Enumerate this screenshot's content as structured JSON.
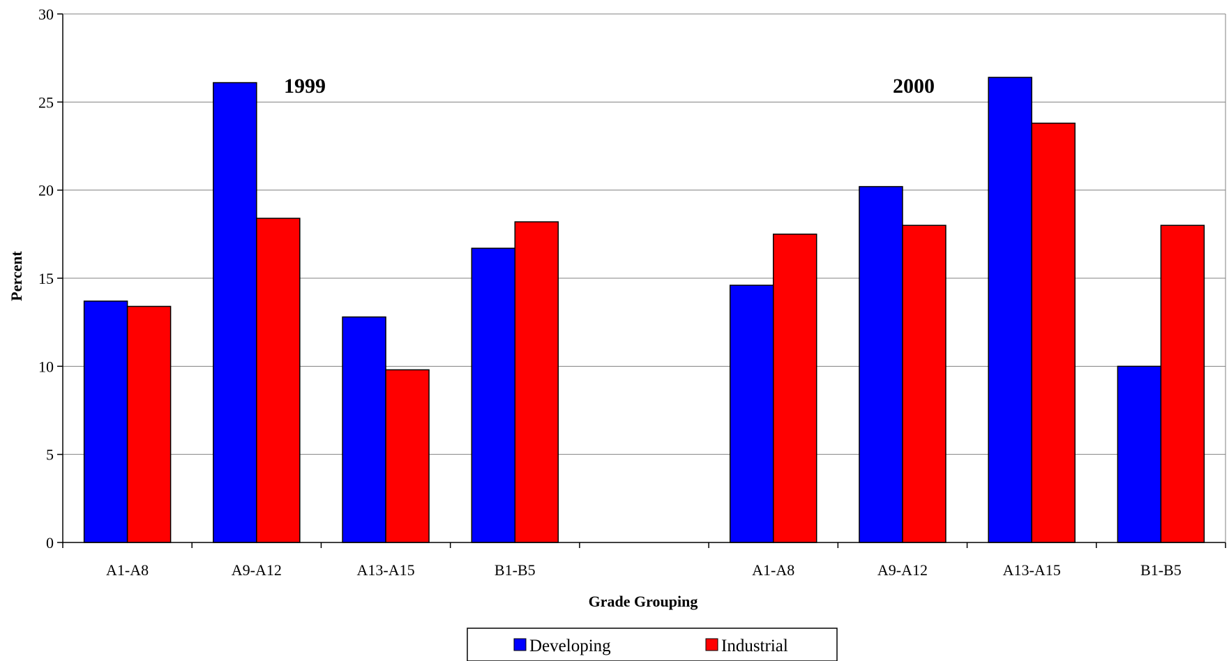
{
  "chart_data": {
    "type": "bar",
    "xlabel": "Grade Grouping",
    "ylabel": "Percent",
    "ylim": [
      0,
      30
    ],
    "yticks": [
      0,
      5,
      10,
      15,
      20,
      25,
      30
    ],
    "grid": true,
    "legend_position": "bottom",
    "categories": [
      "A1-A8",
      "A9-A12",
      "A13-A15",
      "B1-B5",
      "",
      "A1-A8",
      "A9-A12",
      "A13-A15",
      "B1-B5"
    ],
    "series": [
      {
        "name": "Developing",
        "color": "#0000ff",
        "values": [
          13.7,
          26.1,
          12.8,
          16.7,
          null,
          14.6,
          20.2,
          26.4,
          10.0
        ]
      },
      {
        "name": "Industrial",
        "color": "#ff0000",
        "values": [
          13.4,
          18.4,
          9.8,
          18.2,
          null,
          17.5,
          18.0,
          23.8,
          18.0
        ]
      }
    ],
    "annotations": [
      {
        "text": "1999",
        "near_category": 1
      },
      {
        "text": "2000",
        "near_category": 6
      }
    ]
  }
}
